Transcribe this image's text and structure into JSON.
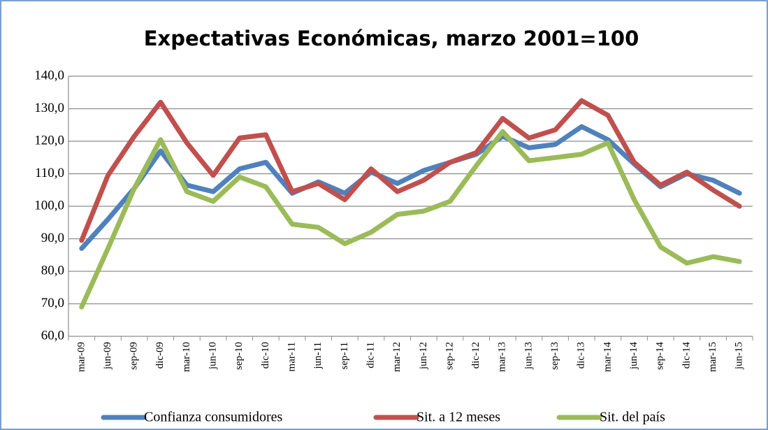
{
  "chart_data": {
    "type": "line",
    "title": "Expectativas Económicas, marzo 2001=100",
    "categories": [
      "mar-09",
      "jun-09",
      "sep-09",
      "dic-09",
      "mar-10",
      "jun-10",
      "sep-10",
      "dic-10",
      "mar-11",
      "jun-11",
      "sep-11",
      "dic-11",
      "mar-12",
      "jun-12",
      "sep-12",
      "dic-12",
      "mar-13",
      "jun-13",
      "sep-13",
      "dic-13",
      "mar-14",
      "jun-14",
      "sep-14",
      "dic-14",
      "mar-15",
      "jun-15"
    ],
    "series": [
      {
        "name": "Confianza consumidores",
        "color": "#4f81bd",
        "values": [
          87,
          96,
          105.5,
          117,
          106.5,
          104.5,
          111.5,
          113.5,
          104,
          107.5,
          104,
          110.5,
          107,
          111,
          113.5,
          116,
          121.5,
          118,
          119,
          124.5,
          120.5,
          113,
          106,
          110,
          108,
          104
        ]
      },
      {
        "name": "Sit. a 12 meses",
        "color": "#c0504d",
        "values": [
          89.5,
          109.5,
          121.5,
          132,
          119.5,
          109.5,
          121,
          122,
          104.5,
          107,
          102,
          111.5,
          104.5,
          108,
          113.5,
          116.5,
          127,
          121,
          123.5,
          132.5,
          128,
          113.5,
          106.5,
          110.5,
          105,
          100
        ]
      },
      {
        "name": "Sit. del país",
        "color": "#9bbb59",
        "values": [
          69,
          87,
          105.5,
          120.5,
          104.5,
          101.5,
          109,
          106,
          94.5,
          93.5,
          88.5,
          92,
          97.5,
          98.5,
          101.5,
          112.5,
          123,
          114,
          115,
          116,
          119.5,
          102,
          87.5,
          82.5,
          84.5,
          83
        ]
      }
    ],
    "ylim": [
      60,
      140
    ],
    "yticks": [
      {
        "value": 60,
        "label": "60,0"
      },
      {
        "value": 70,
        "label": "70,0"
      },
      {
        "value": 80,
        "label": "80,0"
      },
      {
        "value": 90,
        "label": "90,0"
      },
      {
        "value": 100,
        "label": "100,0"
      },
      {
        "value": 110,
        "label": "110,0"
      },
      {
        "value": 120,
        "label": "120,0"
      },
      {
        "value": 130,
        "label": "130,0"
      },
      {
        "value": 140,
        "label": "140,0"
      }
    ],
    "grid": true
  }
}
